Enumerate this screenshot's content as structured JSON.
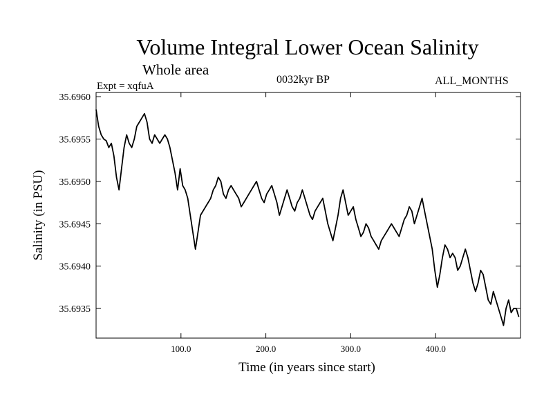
{
  "header": {
    "title": "Volume Integral Lower Ocean Salinity",
    "subtitle": "Whole area",
    "expt": "Expt = xqfuA",
    "period": "0032kyr BP",
    "months": "ALL_MONTHS"
  },
  "chart_data": {
    "type": "line",
    "title": "Volume Integral Lower Ocean Salinity",
    "xlabel": "Time (in years since start)",
    "ylabel": "Salinity (in PSU)",
    "xlim": [
      0,
      500
    ],
    "ylim": [
      35.69315,
      35.69605
    ],
    "xticks": [
      100,
      200,
      300,
      400
    ],
    "xtick_labels": [
      "100.0",
      "200.0",
      "300.0",
      "400.0"
    ],
    "yticks": [
      35.6935,
      35.694,
      35.6945,
      35.695,
      35.6955,
      35.696
    ],
    "ytick_labels": [
      "35.6935",
      "35.6940",
      "35.6945",
      "35.6950",
      "35.6955",
      "35.6960"
    ],
    "grid": false,
    "series": [
      {
        "name": "Salinity",
        "x": [
          0,
          3,
          6,
          9,
          12,
          15,
          18,
          21,
          24,
          27,
          30,
          33,
          36,
          39,
          42,
          45,
          48,
          51,
          54,
          57,
          60,
          63,
          66,
          69,
          72,
          75,
          78,
          81,
          84,
          87,
          90,
          93,
          96,
          99,
          102,
          105,
          108,
          111,
          114,
          117,
          120,
          123,
          126,
          129,
          132,
          135,
          138,
          141,
          144,
          147,
          150,
          153,
          156,
          159,
          162,
          165,
          168,
          171,
          174,
          177,
          180,
          183,
          186,
          189,
          192,
          195,
          198,
          201,
          204,
          207,
          210,
          213,
          216,
          219,
          222,
          225,
          228,
          231,
          234,
          237,
          240,
          243,
          246,
          249,
          252,
          255,
          258,
          261,
          264,
          267,
          270,
          273,
          276,
          279,
          282,
          285,
          288,
          291,
          294,
          297,
          300,
          303,
          306,
          309,
          312,
          315,
          318,
          321,
          324,
          327,
          330,
          333,
          336,
          339,
          342,
          345,
          348,
          351,
          354,
          357,
          360,
          363,
          366,
          369,
          372,
          375,
          378,
          381,
          384,
          387,
          390,
          393,
          396,
          399,
          402,
          405,
          408,
          411,
          414,
          417,
          420,
          423,
          426,
          429,
          432,
          435,
          438,
          441,
          444,
          447,
          450,
          453,
          456,
          459,
          462,
          465,
          468,
          471,
          474,
          477,
          480,
          483,
          486,
          489,
          492,
          495,
          498
        ],
        "values": [
          35.69585,
          35.69565,
          35.69555,
          35.6955,
          35.69548,
          35.6954,
          35.69545,
          35.6953,
          35.69505,
          35.6949,
          35.69515,
          35.6954,
          35.69555,
          35.69545,
          35.6954,
          35.6955,
          35.69565,
          35.6957,
          35.69575,
          35.6958,
          35.6957,
          35.6955,
          35.69545,
          35.69555,
          35.6955,
          35.69545,
          35.6955,
          35.69555,
          35.6955,
          35.6954,
          35.69525,
          35.6951,
          35.6949,
          35.69515,
          35.69495,
          35.6949,
          35.6948,
          35.6946,
          35.6944,
          35.6942,
          35.6944,
          35.6946,
          35.69465,
          35.6947,
          35.69475,
          35.6948,
          35.6949,
          35.69495,
          35.69505,
          35.695,
          35.69485,
          35.6948,
          35.6949,
          35.69495,
          35.6949,
          35.69485,
          35.6948,
          35.6947,
          35.69475,
          35.6948,
          35.69485,
          35.6949,
          35.69495,
          35.695,
          35.6949,
          35.6948,
          35.69475,
          35.69485,
          35.6949,
          35.69495,
          35.69485,
          35.69475,
          35.6946,
          35.6947,
          35.6948,
          35.6949,
          35.6948,
          35.6947,
          35.69465,
          35.69475,
          35.6948,
          35.6949,
          35.6948,
          35.6947,
          35.6946,
          35.69455,
          35.69465,
          35.6947,
          35.69475,
          35.6948,
          35.69465,
          35.6945,
          35.6944,
          35.6943,
          35.69445,
          35.6946,
          35.6948,
          35.6949,
          35.69475,
          35.6946,
          35.69465,
          35.6947,
          35.69455,
          35.69445,
          35.69435,
          35.6944,
          35.6945,
          35.69445,
          35.69435,
          35.6943,
          35.69425,
          35.6942,
          35.6943,
          35.69435,
          35.6944,
          35.69445,
          35.6945,
          35.69445,
          35.6944,
          35.69435,
          35.69445,
          35.69455,
          35.6946,
          35.6947,
          35.69465,
          35.6945,
          35.6946,
          35.6947,
          35.6948,
          35.69465,
          35.6945,
          35.69435,
          35.6942,
          35.69395,
          35.69375,
          35.6939,
          35.6941,
          35.69425,
          35.6942,
          35.6941,
          35.69415,
          35.6941,
          35.69395,
          35.694,
          35.6941,
          35.6942,
          35.6941,
          35.69395,
          35.6938,
          35.6937,
          35.6938,
          35.69395,
          35.6939,
          35.69375,
          35.6936,
          35.69355,
          35.6937,
          35.6936,
          35.6935,
          35.6934,
          35.6933,
          35.6935,
          35.6936,
          35.69345,
          35.6935,
          35.6935,
          35.6934
        ]
      }
    ]
  }
}
